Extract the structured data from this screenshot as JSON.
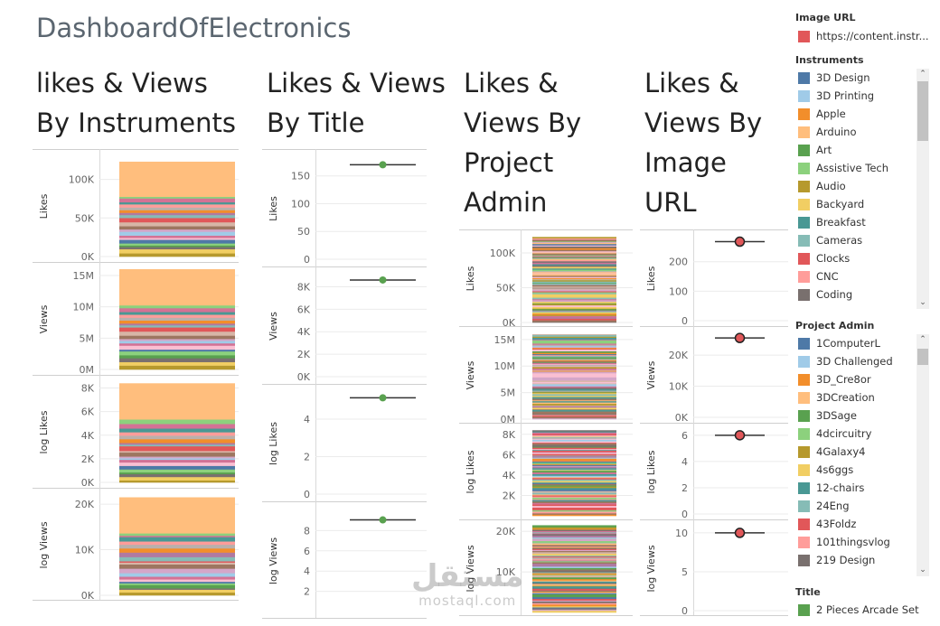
{
  "dashboard_title": "DashboardOfElectronics",
  "columns": [
    {
      "title": "likes & Views\nBy Instruments"
    },
    {
      "title": "Likes & Views\nBy Title"
    },
    {
      "title": "Likes &\nViews By\nProject\nAdmin"
    },
    {
      "title": "Likes &\nViews By\nImage\nURL"
    }
  ],
  "chart_data": [
    {
      "type": "bar",
      "title": "likes & Views By Instruments",
      "stacked": true,
      "stack_by": "Instruments",
      "panels": [
        {
          "ylabel": "Likes",
          "ylim": [
            0,
            130000
          ],
          "ticks": [
            0,
            50000,
            100000
          ],
          "tick_labels": [
            "0K",
            "50K",
            "100K"
          ],
          "total": 123000
        },
        {
          "ylabel": "Views",
          "ylim": [
            0,
            16000000
          ],
          "ticks": [
            0,
            5000000,
            10000000,
            15000000
          ],
          "tick_labels": [
            "0M",
            "5M",
            "10M",
            "15M"
          ],
          "total": 16000000
        },
        {
          "ylabel": "log Likes",
          "ylim": [
            0,
            8500
          ],
          "ticks": [
            0,
            2000,
            4000,
            6000,
            8000
          ],
          "tick_labels": [
            "0K",
            "2K",
            "4K",
            "6K",
            "8K"
          ],
          "total": 8400
        },
        {
          "ylabel": "log Views",
          "ylim": [
            0,
            22000
          ],
          "ticks": [
            0,
            10000,
            20000
          ],
          "tick_labels": [
            "0K",
            "10K",
            "20K"
          ],
          "total": 21500
        }
      ]
    },
    {
      "type": "scatter",
      "title": "Likes & Views By Title",
      "panels": [
        {
          "ylabel": "Likes",
          "ylim": [
            0,
            182
          ],
          "ticks": [
            0,
            50,
            100,
            150
          ],
          "tick_labels": [
            "0",
            "50",
            "100",
            "150"
          ],
          "value": 170
        },
        {
          "ylabel": "Views",
          "ylim": [
            0,
            9000
          ],
          "ticks": [
            0,
            2000,
            4000,
            6000,
            8000
          ],
          "tick_labels": [
            "0K",
            "2K",
            "4K",
            "6K",
            "8K"
          ],
          "value": 8600
        },
        {
          "ylabel": "log Likes",
          "ylim": [
            0,
            5.4
          ],
          "ticks": [
            0,
            2,
            4
          ],
          "tick_labels": [
            "0",
            "2",
            "4"
          ],
          "value": 5.14
        },
        {
          "ylabel": "log Views",
          "ylim": [
            0,
            10
          ],
          "ticks": [
            2,
            4,
            6,
            8
          ],
          "tick_labels": [
            "2",
            "4",
            "6",
            "8"
          ],
          "value": 9.06
        }
      ]
    },
    {
      "type": "bar",
      "title": "Likes & Views By Project Admin",
      "stacked": true,
      "stack_by": "Project Admin",
      "panels": [
        {
          "ylabel": "Likes",
          "ylim": [
            0,
            126000
          ],
          "ticks": [
            0,
            50000,
            100000
          ],
          "tick_labels": [
            "0K",
            "50K",
            "100K"
          ],
          "total": 123000
        },
        {
          "ylabel": "Views",
          "ylim": [
            0,
            16500000
          ],
          "ticks": [
            0,
            5000000,
            10000000,
            15000000
          ],
          "tick_labels": [
            "0M",
            "5M",
            "10M",
            "15M"
          ],
          "total": 16000000
        },
        {
          "ylabel": "log Likes",
          "ylim": [
            0,
            8600
          ],
          "ticks": [
            2000,
            4000,
            6000,
            8000
          ],
          "tick_labels": [
            "2K",
            "4K",
            "6K",
            "8K"
          ],
          "total": 8400
        },
        {
          "ylabel": "log Views",
          "ylim": [
            0,
            21600
          ],
          "ticks": [
            10000,
            20000
          ],
          "tick_labels": [
            "10K",
            "20K"
          ],
          "total": 21500
        }
      ]
    },
    {
      "type": "scatter",
      "title": "Likes & Views By Image URL",
      "panels": [
        {
          "ylabel": "Likes",
          "ylim": [
            0,
            285
          ],
          "ticks": [
            0,
            100,
            200
          ],
          "tick_labels": [
            "0",
            "100",
            "200"
          ],
          "value": 268
        },
        {
          "ylabel": "Views",
          "ylim": [
            0,
            27000
          ],
          "ticks": [
            0,
            10000,
            20000
          ],
          "tick_labels": [
            "0K",
            "10K",
            "20K"
          ],
          "value": 25500
        },
        {
          "ylabel": "log Likes",
          "ylim": [
            0,
            6.4
          ],
          "ticks": [
            0,
            2,
            4,
            6
          ],
          "tick_labels": [
            "0",
            "2",
            "4",
            "6"
          ],
          "value": 6.0
        },
        {
          "ylabel": "log Views",
          "ylim": [
            0,
            10.8
          ],
          "ticks": [
            0,
            5,
            10
          ],
          "tick_labels": [
            "0",
            "5",
            "10"
          ],
          "value": 10.0
        }
      ]
    }
  ],
  "legends": {
    "image_url": {
      "title": "Image URL",
      "items": [
        {
          "label": "https://content.instr...",
          "color": "#e15759"
        }
      ]
    },
    "instruments": {
      "title": "Instruments",
      "items": [
        {
          "label": "3D Design",
          "color": "#4e79a7"
        },
        {
          "label": "3D Printing",
          "color": "#a0cbe8"
        },
        {
          "label": "Apple",
          "color": "#f28e2b"
        },
        {
          "label": "Arduino",
          "color": "#ffbe7d"
        },
        {
          "label": "Art",
          "color": "#59a14f"
        },
        {
          "label": "Assistive Tech",
          "color": "#8cd17d"
        },
        {
          "label": "Audio",
          "color": "#b6992d"
        },
        {
          "label": "Backyard",
          "color": "#f1ce63"
        },
        {
          "label": "Breakfast",
          "color": "#499894"
        },
        {
          "label": "Cameras",
          "color": "#86bcb6"
        },
        {
          "label": "Clocks",
          "color": "#e15759"
        },
        {
          "label": "CNC",
          "color": "#ff9d9a"
        },
        {
          "label": "Coding",
          "color": "#79706e"
        }
      ]
    },
    "project_admin": {
      "title": "Project Admin",
      "items": [
        {
          "label": "1ComputerL",
          "color": "#4e79a7"
        },
        {
          "label": "3D Challenged",
          "color": "#a0cbe8"
        },
        {
          "label": "3D_Cre8or",
          "color": "#f28e2b"
        },
        {
          "label": "3DCreation",
          "color": "#ffbe7d"
        },
        {
          "label": "3DSage",
          "color": "#59a14f"
        },
        {
          "label": "4dcircuitry",
          "color": "#8cd17d"
        },
        {
          "label": "4Galaxy4",
          "color": "#b6992d"
        },
        {
          "label": "4s6ggs",
          "color": "#f1ce63"
        },
        {
          "label": "12-chairs",
          "color": "#499894"
        },
        {
          "label": "24Eng",
          "color": "#86bcb6"
        },
        {
          "label": "43Foldz",
          "color": "#e15759"
        },
        {
          "label": "101thingsvlog",
          "color": "#ff9d9a"
        },
        {
          "label": "219 Design",
          "color": "#79706e"
        }
      ]
    },
    "title": {
      "title": "Title",
      "items": [
        {
          "label": "2 Pieces Arcade Set",
          "color": "#59a14f"
        }
      ]
    }
  },
  "colors": {
    "palette": [
      "#4e79a7",
      "#a0cbe8",
      "#f28e2b",
      "#ffbe7d",
      "#59a14f",
      "#8cd17d",
      "#b6992d",
      "#f1ce63",
      "#499894",
      "#86bcb6",
      "#e15759",
      "#ff9d9a",
      "#79706e",
      "#bab0ac",
      "#d37295",
      "#fabfd2",
      "#b07aa1",
      "#d4a6c8",
      "#9d7660",
      "#d7b5a6"
    ],
    "title_dot": "#59a14f",
    "url_dot": "#e15759",
    "axis": "#555555",
    "grid": "#ebebeb"
  },
  "watermark": {
    "arabic": "مستقل",
    "latin": "mostaql.com"
  }
}
